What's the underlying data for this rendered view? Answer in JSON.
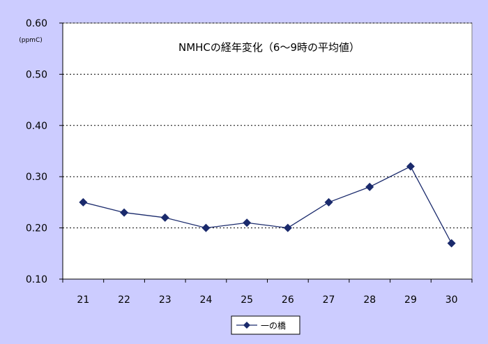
{
  "chart_data": {
    "type": "line",
    "title": "NMHCの経年変化（6～9時の平均値）",
    "unit_label": "(ppmC)",
    "xlabel": "",
    "ylabel": "",
    "categories": [
      "21",
      "22",
      "23",
      "24",
      "25",
      "26",
      "27",
      "28",
      "29",
      "30"
    ],
    "y_ticks": [
      "0.10",
      "0.20",
      "0.30",
      "0.40",
      "0.50",
      "0.60"
    ],
    "ylim": [
      0.1,
      0.6
    ],
    "grid": "horizontal dotted",
    "legend_position": "bottom-center",
    "series": [
      {
        "name": "一の橋",
        "values": [
          0.25,
          0.23,
          0.22,
          0.2,
          0.21,
          0.2,
          0.25,
          0.28,
          0.32,
          0.17
        ],
        "color": "#1a2a6c",
        "marker": "diamond"
      }
    ],
    "colors": {
      "page_background": "#ccccff",
      "plot_background": "#ffffff",
      "gridline": "#000000"
    }
  }
}
